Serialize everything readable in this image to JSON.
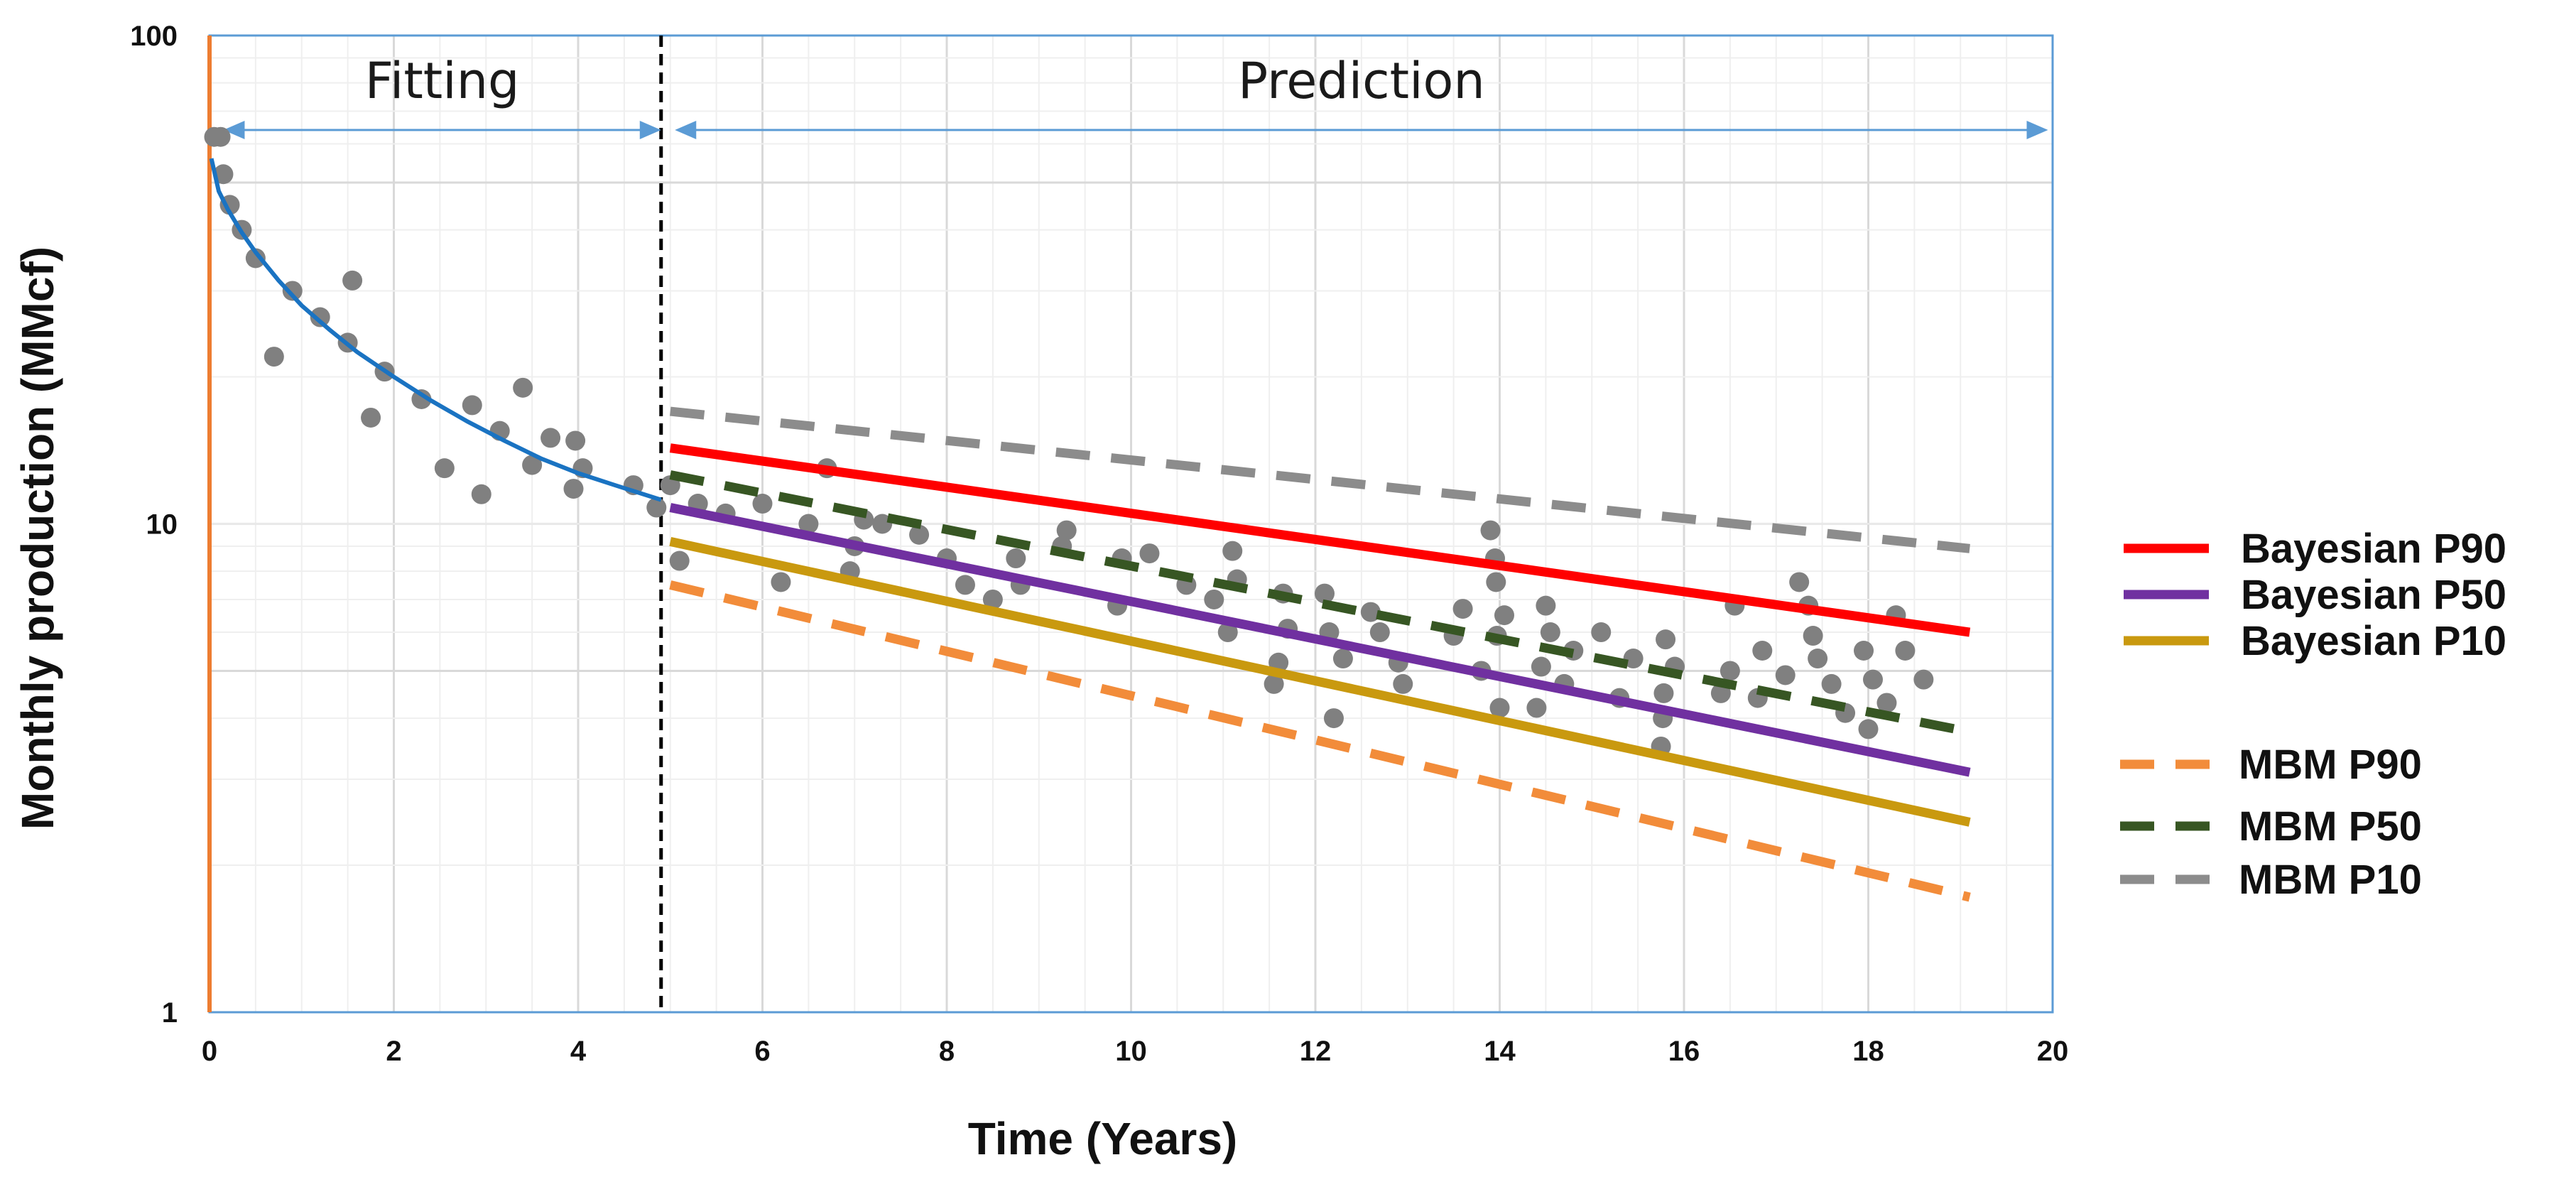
{
  "chart_data": {
    "type": "line",
    "xlabel": "Time (Years)",
    "ylabel": "Monthly production  (MMcf)",
    "yscale": "log",
    "xlim": [
      0,
      20
    ],
    "ylim": [
      1,
      100
    ],
    "xticks": [
      "0",
      "2",
      "4",
      "6",
      "8",
      "10",
      "12",
      "14",
      "16",
      "18",
      "20"
    ],
    "yticks": [
      {
        "value": 1,
        "label": "1"
      },
      {
        "value": 10,
        "label": "10"
      },
      {
        "value": 100,
        "label": "100"
      }
    ],
    "grid": true,
    "split_year": 4.9,
    "phases": [
      {
        "label": "Fitting",
        "x_start": 0.15,
        "x_end": 4.9
      },
      {
        "label": "Prediction",
        "x_start": 5.05,
        "x_end": 19.95
      }
    ],
    "colors": {
      "fit_curve": "#1a73c2",
      "points": "#808080",
      "axis_left": "#ed7d31",
      "frame": "#5b9bd5",
      "phase_arrow": "#5b9bd5",
      "grid_major": "#d9d9d9",
      "grid_minor": "#efefef"
    },
    "fit_curve": {
      "name": "Fit",
      "x": [
        0.02,
        0.1,
        0.2,
        0.35,
        0.5,
        0.75,
        1.0,
        1.3,
        1.6,
        2.0,
        2.4,
        2.8,
        3.2,
        3.6,
        4.0,
        4.4,
        4.9
      ],
      "y": [
        56,
        48,
        44,
        39.5,
        36,
        31.5,
        28,
        25,
        22.5,
        20,
        17.9,
        16.2,
        14.8,
        13.6,
        12.7,
        12.0,
        11.2
      ]
    },
    "scatter": {
      "x": [
        0.05,
        0.12,
        0.15,
        0.22,
        0.35,
        0.5,
        0.7,
        0.9,
        1.2,
        1.5,
        1.55,
        1.75,
        1.9,
        2.3,
        2.55,
        2.85,
        2.95,
        3.15,
        3.4,
        3.5,
        3.7,
        3.95,
        3.97,
        4.05,
        4.6,
        4.85,
        5.0,
        5.1,
        5.3,
        5.6,
        6.0,
        6.2,
        6.5,
        6.7,
        6.95,
        7.0,
        7.1,
        7.3,
        7.7,
        8.0,
        8.2,
        8.5,
        8.75,
        8.8,
        9.25,
        9.3,
        9.85,
        9.9,
        10.2,
        10.6,
        10.9,
        11.05,
        11.1,
        11.15,
        11.55,
        11.6,
        11.65,
        11.7,
        12.1,
        12.15,
        12.2,
        12.3,
        12.6,
        12.7,
        12.9,
        12.95,
        13.5,
        13.6,
        13.8,
        13.9,
        13.95,
        13.96,
        13.97,
        14.0,
        14.05,
        14.4,
        14.45,
        14.5,
        14.55,
        14.7,
        14.8,
        15.1,
        15.3,
        15.45,
        15.75,
        15.77,
        15.78,
        15.8,
        15.9,
        16.4,
        16.5,
        16.55,
        16.8,
        16.85,
        17.1,
        17.25,
        17.35,
        17.4,
        17.45,
        17.6,
        17.75,
        17.95,
        18.0,
        18.05,
        18.2,
        18.3,
        18.4,
        18.6
      ],
      "y": [
        62,
        62,
        52,
        45,
        40,
        35,
        22,
        30,
        26.5,
        23.5,
        31.5,
        16.5,
        20.5,
        18,
        13,
        17.5,
        11.5,
        15.5,
        19,
        13.2,
        15,
        11.8,
        14.8,
        13,
        12,
        10.8,
        12,
        8.4,
        11,
        10.5,
        11,
        7.6,
        10,
        13,
        8,
        9,
        10.2,
        10,
        9.5,
        8.5,
        7.5,
        7.0,
        8.5,
        7.5,
        9.0,
        9.7,
        6.8,
        8.5,
        8.7,
        7.5,
        7.0,
        6.0,
        8.8,
        7.7,
        4.7,
        5.2,
        7.2,
        6.1,
        7.2,
        6.0,
        4.0,
        5.3,
        6.6,
        6.0,
        5.2,
        4.7,
        5.9,
        6.7,
        5.0,
        9.7,
        8.5,
        7.6,
        5.9,
        4.2,
        6.5,
        4.2,
        5.1,
        6.8,
        6.0,
        4.7,
        5.5,
        6.0,
        4.4,
        5.3,
        3.5,
        4.0,
        4.5,
        5.8,
        5.1,
        4.5,
        5.0,
        6.8,
        4.4,
        5.5,
        4.9,
        7.6,
        6.8,
        5.9,
        5.3,
        4.7,
        4.1,
        5.5,
        3.8,
        4.8,
        4.3,
        6.5,
        5.5,
        4.8
      ],
      "marker_radius_px": 14
    },
    "series": [
      {
        "name": "Bayesian P90",
        "style": "solid",
        "color": "#ff0000",
        "x": [
          5.0,
          19.1
        ],
        "y": [
          14.3,
          6.0
        ]
      },
      {
        "name": "Bayesian P50",
        "style": "solid",
        "color": "#7030a0",
        "x": [
          5.0,
          19.1
        ],
        "y": [
          10.8,
          3.1
        ]
      },
      {
        "name": "Bayesian P10",
        "style": "solid",
        "color": "#c9990f",
        "x": [
          5.0,
          19.1
        ],
        "y": [
          9.2,
          2.45
        ]
      },
      {
        "name": "MBM P90",
        "style": "dashed",
        "color": "#f28c3a",
        "x": [
          5.0,
          19.1
        ],
        "y": [
          7.5,
          1.72
        ]
      },
      {
        "name": "MBM P50",
        "style": "dashed",
        "color": "#375623",
        "x": [
          5.0,
          19.1
        ],
        "y": [
          12.6,
          3.75
        ]
      },
      {
        "name": "MBM P10",
        "style": "dashed",
        "color": "#8c8c8c",
        "x": [
          5.0,
          19.1
        ],
        "y": [
          17.0,
          8.9
        ]
      }
    ],
    "legend": {
      "position": "right",
      "groups": [
        [
          "Bayesian P90",
          "Bayesian P50",
          "Bayesian P10"
        ],
        [
          "MBM P90",
          "MBM P50",
          "MBM P10"
        ]
      ]
    }
  }
}
